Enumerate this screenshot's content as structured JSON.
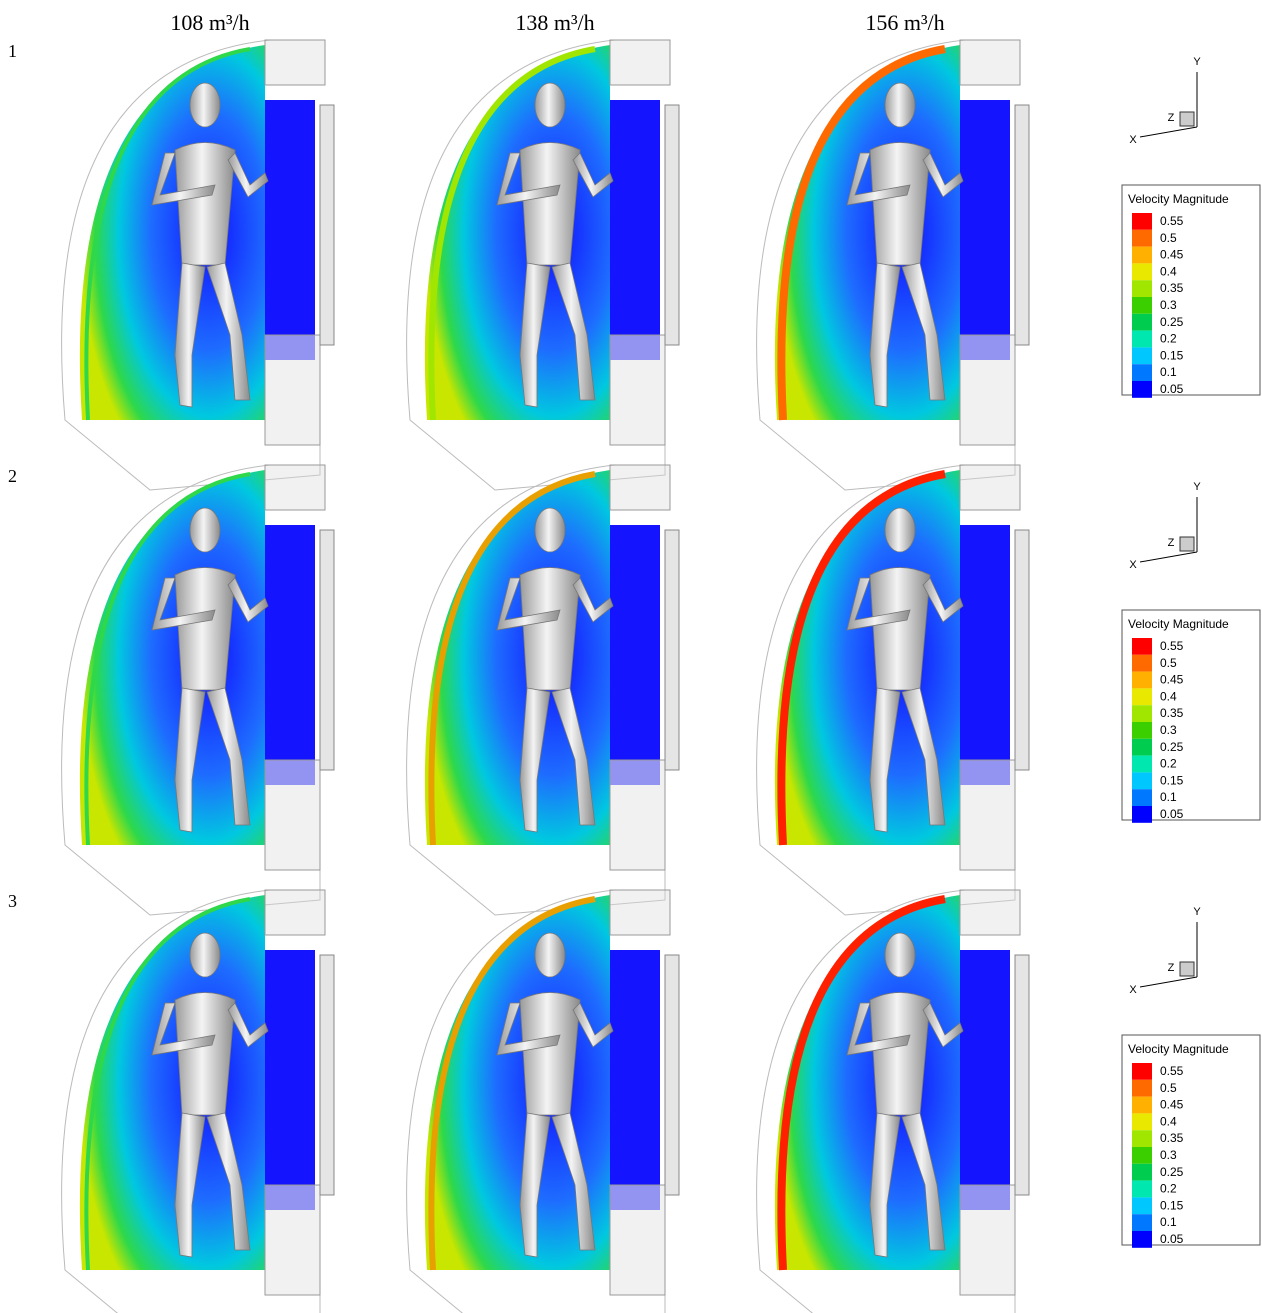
{
  "columns": [
    "108 m³/h",
    "138 m³/h",
    "156 m³/h"
  ],
  "rows": [
    {
      "label": "1",
      "axes": {
        "x": "X",
        "y": "Y",
        "z": "Z"
      },
      "legend": {
        "title": "Velocity Magnitude",
        "levels": [
          "0.55",
          "0.5",
          "0.45",
          "0.4",
          "0.35",
          "0.3",
          "0.25",
          "0.2",
          "0.15",
          "0.1",
          "0.05"
        ],
        "colors": [
          "#ff0000",
          "#ff6a00",
          "#ffb000",
          "#e8e800",
          "#a0e600",
          "#3ccf00",
          "#00cc50",
          "#00e8b0",
          "#00c8ff",
          "#0078ff",
          "#0000ff"
        ]
      }
    },
    {
      "label": "2",
      "axes": {
        "x": "X",
        "y": "Y",
        "z": "Z"
      },
      "legend": {
        "title": "Velocity Magnitude",
        "levels": [
          "0.55",
          "0.5",
          "0.45",
          "0.4",
          "0.35",
          "0.3",
          "0.25",
          "0.2",
          "0.15",
          "0.1",
          "0.05"
        ],
        "colors": [
          "#ff0000",
          "#ff6a00",
          "#ffb000",
          "#e8e800",
          "#a0e600",
          "#3ccf00",
          "#00cc50",
          "#00e8b0",
          "#00c8ff",
          "#0078ff",
          "#0000ff"
        ]
      }
    },
    {
      "label": "3",
      "axes": {
        "x": "X",
        "y": "Y",
        "z": "Z"
      },
      "legend": {
        "title": "Velocity Magnitude",
        "levels": [
          "0.55",
          "0.5",
          "0.45",
          "0.4",
          "0.35",
          "0.3",
          "0.25",
          "0.2",
          "0.15",
          "0.1",
          "0.05"
        ],
        "colors": [
          "#ff0000",
          "#ff6a00",
          "#ffb000",
          "#e8e800",
          "#a0e600",
          "#3ccf00",
          "#00cc50",
          "#00e8b0",
          "#00c8ff",
          "#0078ff",
          "#0000ff"
        ]
      }
    }
  ]
}
